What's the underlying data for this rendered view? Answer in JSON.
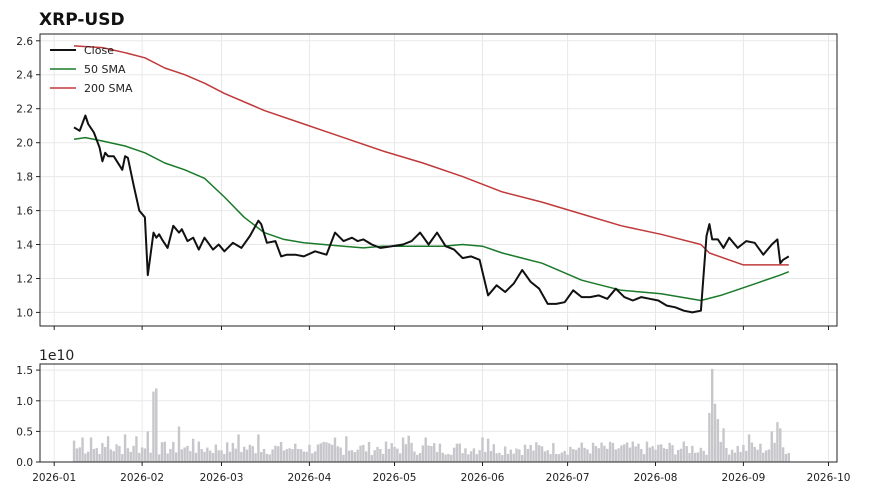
{
  "chart_data": {
    "type": "line",
    "title": "XRP-USD",
    "price_panel": {
      "ylim": [
        0.92,
        2.64
      ],
      "yticks": [
        1.0,
        1.2,
        1.4,
        1.6,
        1.8,
        2.0,
        2.2,
        2.4,
        2.6
      ],
      "ytick_labels": [
        "1.0",
        "1.2",
        "1.4",
        "1.6",
        "1.8",
        "2.0",
        "2.2",
        "2.4",
        "2.6"
      ],
      "legend": {
        "placement": "top-left",
        "entries": [
          "Close",
          "50 SMA",
          "200 SMA"
        ]
      },
      "grid": true
    },
    "volume_panel": {
      "exponent_label": "1e10",
      "ylim": [
        0,
        1.6
      ],
      "yticks": [
        0.0,
        0.5,
        1.0,
        1.5
      ],
      "ytick_labels": [
        "0.0",
        "0.5",
        "1.0",
        "1.5"
      ],
      "grid": true
    },
    "x_axis": {
      "range": [
        "2025-12-27",
        "2026-10-04"
      ],
      "ticks": [
        "2026-01-01",
        "2026-02-01",
        "2026-03-01",
        "2026-04-01",
        "2026-05-01",
        "2026-06-01",
        "2026-07-01",
        "2026-08-01",
        "2026-09-01",
        "2026-10-01"
      ],
      "tick_labels": [
        "2026-01",
        "2026-02",
        "2026-03",
        "2026-04",
        "2026-05",
        "2026-06",
        "2026-07",
        "2026-08",
        "2026-09",
        "2026-10"
      ]
    },
    "series": [
      {
        "name": "Close",
        "color": "#111111",
        "x": [
          "2026-01-08",
          "2026-01-10",
          "2026-01-12",
          "2026-01-13",
          "2026-01-15",
          "2026-01-17",
          "2026-01-18",
          "2026-01-19",
          "2026-01-20",
          "2026-01-22",
          "2026-01-25",
          "2026-01-26",
          "2026-01-27",
          "2026-01-29",
          "2026-01-31",
          "2026-02-02",
          "2026-02-03",
          "2026-02-05",
          "2026-02-06",
          "2026-02-07",
          "2026-02-08",
          "2026-02-10",
          "2026-02-12",
          "2026-02-14",
          "2026-02-15",
          "2026-02-17",
          "2026-02-19",
          "2026-02-21",
          "2026-02-23",
          "2026-02-26",
          "2026-02-28",
          "2026-03-02",
          "2026-03-05",
          "2026-03-08",
          "2026-03-11",
          "2026-03-14",
          "2026-03-15",
          "2026-03-17",
          "2026-03-20",
          "2026-03-22",
          "2026-03-24",
          "2026-03-27",
          "2026-03-30",
          "2026-04-03",
          "2026-04-07",
          "2026-04-10",
          "2026-04-13",
          "2026-04-16",
          "2026-04-18",
          "2026-04-20",
          "2026-04-23",
          "2026-04-26",
          "2026-04-30",
          "2026-05-04",
          "2026-05-07",
          "2026-05-10",
          "2026-05-13",
          "2026-05-16",
          "2026-05-19",
          "2026-05-22",
          "2026-05-25",
          "2026-05-28",
          "2026-05-31",
          "2026-06-03",
          "2026-06-06",
          "2026-06-09",
          "2026-06-12",
          "2026-06-15",
          "2026-06-18",
          "2026-06-21",
          "2026-06-24",
          "2026-06-27",
          "2026-06-30",
          "2026-07-03",
          "2026-07-06",
          "2026-07-09",
          "2026-07-12",
          "2026-07-15",
          "2026-07-18",
          "2026-07-21",
          "2026-07-24",
          "2026-07-27",
          "2026-07-30",
          "2026-08-02",
          "2026-08-05",
          "2026-08-08",
          "2026-08-11",
          "2026-08-14",
          "2026-08-17",
          "2026-08-19",
          "2026-08-20",
          "2026-08-21",
          "2026-08-23",
          "2026-08-25",
          "2026-08-27",
          "2026-08-30",
          "2026-09-02",
          "2026-09-05",
          "2026-09-08",
          "2026-09-11",
          "2026-09-13",
          "2026-09-14",
          "2026-09-15",
          "2026-09-17"
        ],
        "values": [
          2.09,
          2.07,
          2.16,
          2.11,
          2.06,
          1.97,
          1.89,
          1.94,
          1.92,
          1.92,
          1.84,
          1.92,
          1.91,
          1.75,
          1.6,
          1.56,
          1.22,
          1.47,
          1.44,
          1.46,
          1.43,
          1.38,
          1.51,
          1.47,
          1.49,
          1.42,
          1.44,
          1.37,
          1.44,
          1.37,
          1.4,
          1.36,
          1.41,
          1.38,
          1.45,
          1.54,
          1.52,
          1.41,
          1.42,
          1.33,
          1.34,
          1.34,
          1.33,
          1.36,
          1.34,
          1.47,
          1.42,
          1.44,
          1.42,
          1.43,
          1.4,
          1.38,
          1.39,
          1.4,
          1.42,
          1.47,
          1.4,
          1.47,
          1.39,
          1.37,
          1.32,
          1.33,
          1.31,
          1.1,
          1.16,
          1.12,
          1.17,
          1.25,
          1.18,
          1.14,
          1.05,
          1.05,
          1.06,
          1.13,
          1.09,
          1.09,
          1.1,
          1.08,
          1.14,
          1.09,
          1.07,
          1.09,
          1.08,
          1.07,
          1.04,
          1.03,
          1.01,
          1.0,
          1.01,
          1.45,
          1.52,
          1.43,
          1.43,
          1.38,
          1.44,
          1.38,
          1.42,
          1.41,
          1.34,
          1.4,
          1.43,
          1.29,
          1.31,
          1.33
        ]
      },
      {
        "name": "50 SMA",
        "color": "#1a7a2a",
        "x": [
          "2026-01-08",
          "2026-01-12",
          "2026-01-18",
          "2026-01-26",
          "2026-02-02",
          "2026-02-09",
          "2026-02-16",
          "2026-02-23",
          "2026-03-02",
          "2026-03-09",
          "2026-03-16",
          "2026-03-23",
          "2026-03-30",
          "2026-04-06",
          "2026-04-13",
          "2026-04-20",
          "2026-04-27",
          "2026-05-04",
          "2026-05-11",
          "2026-05-18",
          "2026-05-25",
          "2026-06-01",
          "2026-06-08",
          "2026-06-15",
          "2026-06-22",
          "2026-06-29",
          "2026-07-06",
          "2026-07-13",
          "2026-07-20",
          "2026-07-27",
          "2026-08-03",
          "2026-08-10",
          "2026-08-17",
          "2026-08-24",
          "2026-08-31",
          "2026-09-07",
          "2026-09-14",
          "2026-09-17"
        ],
        "values": [
          2.02,
          2.03,
          2.01,
          1.98,
          1.94,
          1.88,
          1.84,
          1.79,
          1.68,
          1.56,
          1.47,
          1.43,
          1.41,
          1.4,
          1.39,
          1.38,
          1.39,
          1.39,
          1.39,
          1.39,
          1.4,
          1.39,
          1.35,
          1.32,
          1.29,
          1.24,
          1.19,
          1.16,
          1.13,
          1.12,
          1.11,
          1.09,
          1.07,
          1.1,
          1.14,
          1.18,
          1.22,
          1.24
        ]
      },
      {
        "name": "200 SMA",
        "color": "#c0393b",
        "x": [
          "2026-01-08",
          "2026-01-18",
          "2026-01-26",
          "2026-02-02",
          "2026-02-09",
          "2026-02-16",
          "2026-02-23",
          "2026-03-02",
          "2026-03-16",
          "2026-03-30",
          "2026-04-13",
          "2026-04-27",
          "2026-05-11",
          "2026-05-25",
          "2026-06-08",
          "2026-06-22",
          "2026-07-06",
          "2026-07-20",
          "2026-08-03",
          "2026-08-17",
          "2026-08-20",
          "2026-09-01",
          "2026-09-17"
        ],
        "values": [
          2.57,
          2.56,
          2.53,
          2.5,
          2.44,
          2.4,
          2.35,
          2.29,
          2.19,
          2.11,
          2.03,
          1.95,
          1.88,
          1.8,
          1.71,
          1.65,
          1.58,
          1.51,
          1.46,
          1.4,
          1.35,
          1.28,
          1.28
        ]
      }
    ],
    "volume": {
      "unit_exponent": 10,
      "color": "#c7c7cb",
      "start": "2026-01-08",
      "end": "2026-09-17",
      "baseline": 0.25,
      "spikes": [
        {
          "date": "2026-01-08",
          "value": 0.35
        },
        {
          "date": "2026-01-11",
          "value": 0.4
        },
        {
          "date": "2026-01-14",
          "value": 0.4
        },
        {
          "date": "2026-01-20",
          "value": 0.42
        },
        {
          "date": "2026-01-26",
          "value": 0.45
        },
        {
          "date": "2026-01-30",
          "value": 0.42
        },
        {
          "date": "2026-02-03",
          "value": 0.5
        },
        {
          "date": "2026-02-05",
          "value": 1.15
        },
        {
          "date": "2026-02-06",
          "value": 1.2
        },
        {
          "date": "2026-02-14",
          "value": 0.58
        },
        {
          "date": "2026-02-19",
          "value": 0.38
        },
        {
          "date": "2026-03-07",
          "value": 0.45
        },
        {
          "date": "2026-03-14",
          "value": 0.45
        },
        {
          "date": "2026-04-10",
          "value": 0.4
        },
        {
          "date": "2026-04-14",
          "value": 0.42
        },
        {
          "date": "2026-05-04",
          "value": 0.4
        },
        {
          "date": "2026-05-06",
          "value": 0.43
        },
        {
          "date": "2026-05-12",
          "value": 0.4
        },
        {
          "date": "2026-06-01",
          "value": 0.4
        },
        {
          "date": "2026-06-03",
          "value": 0.38
        },
        {
          "date": "2026-08-20",
          "value": 0.8
        },
        {
          "date": "2026-08-21",
          "value": 1.52
        },
        {
          "date": "2026-08-22",
          "value": 0.95
        },
        {
          "date": "2026-08-23",
          "value": 0.7
        },
        {
          "date": "2026-08-25",
          "value": 0.55
        },
        {
          "date": "2026-09-03",
          "value": 0.45
        },
        {
          "date": "2026-09-11",
          "value": 0.5
        },
        {
          "date": "2026-09-13",
          "value": 0.65
        },
        {
          "date": "2026-09-14",
          "value": 0.55
        }
      ]
    }
  }
}
